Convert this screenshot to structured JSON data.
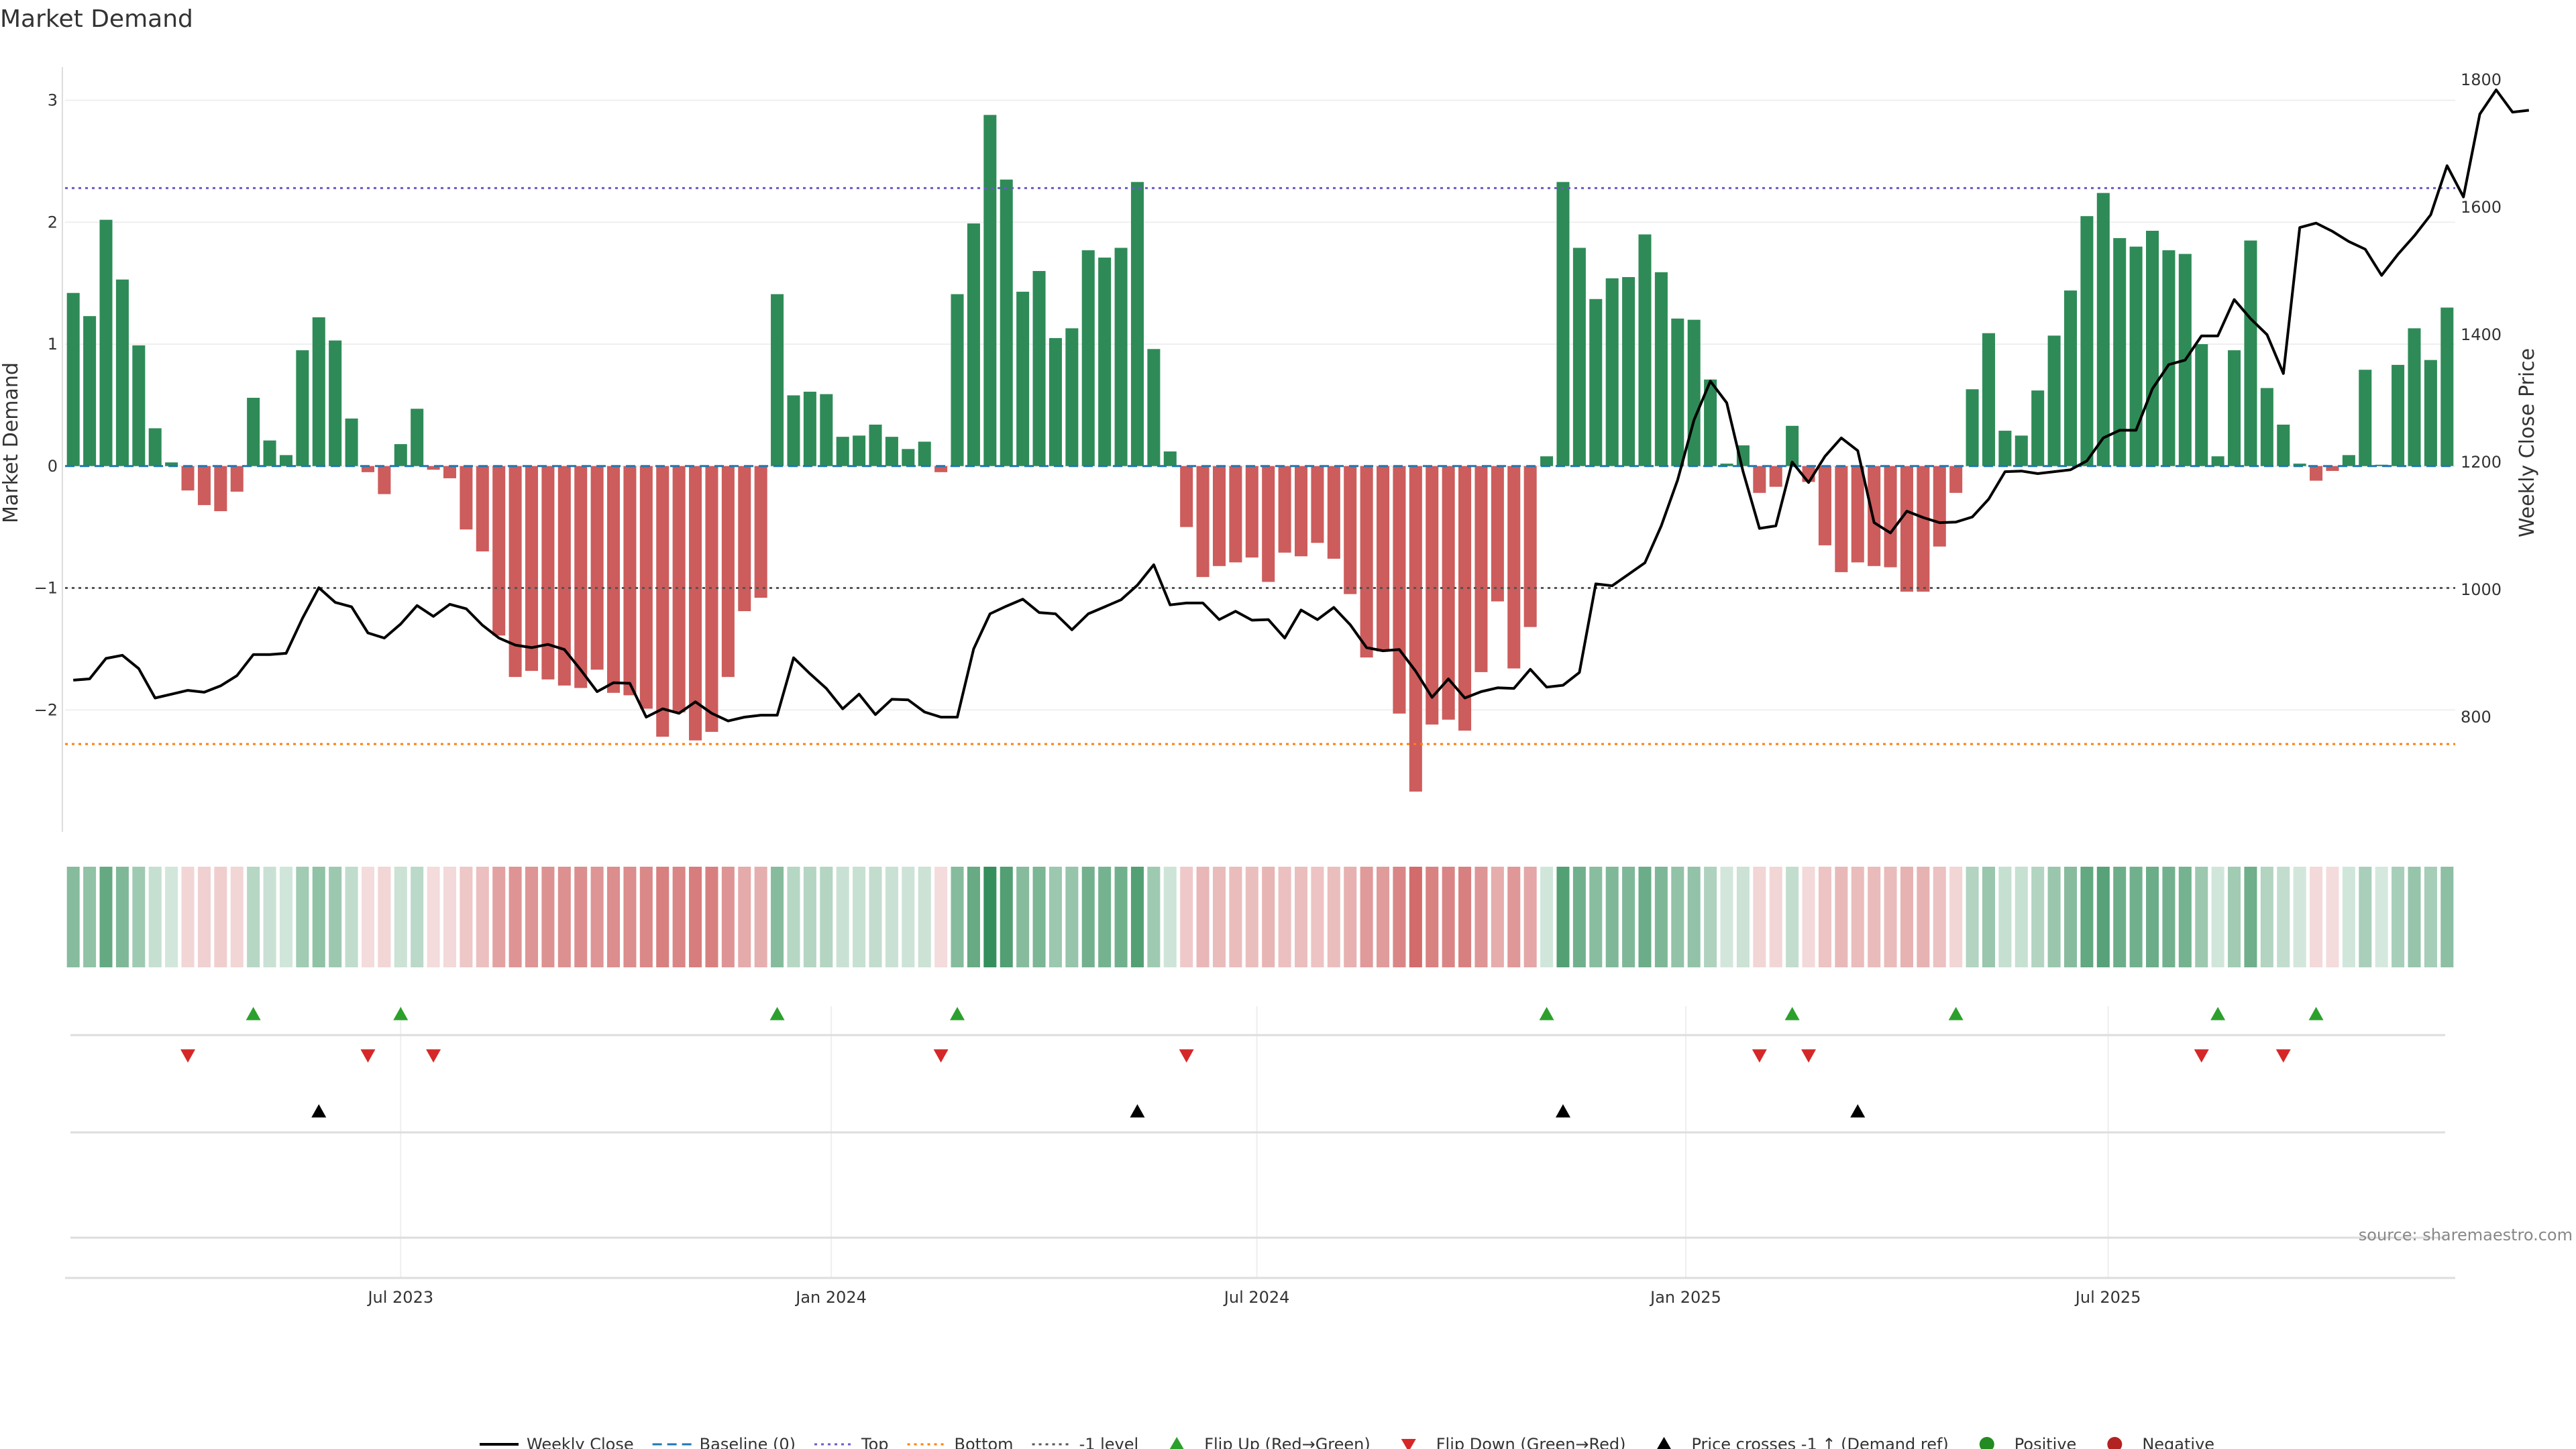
{
  "colors": {
    "pos_bar": "#2e8b57",
    "neg_bar": "#cd5c5c",
    "price_line": "#000000",
    "baseline": "#1f77b4",
    "top": "#6a5acd",
    "bottom": "#ff7f0e",
    "minus1": "#555555",
    "flip_up": "#2ca02c",
    "flip_down": "#d62728",
    "cross": "#000000",
    "positive": "#228b22",
    "negative": "#b22222"
  },
  "chart_data": {
    "type": "bar+line",
    "title": "Market Demand",
    "ylabel_left": "Market Demand",
    "ylabel_right": "Weekly Close Price",
    "ylim_left": [
      -3,
      3.3
    ],
    "ylim_right": [
      620,
      1825
    ],
    "yticks_left": [
      3,
      2,
      1,
      0,
      -1,
      -2
    ],
    "yticks_left_labels": [
      "3",
      "2",
      "1",
      "0",
      "−1",
      "−2"
    ],
    "yticks_right": [
      1800,
      1600,
      1400,
      1200,
      1000,
      800
    ],
    "reference_levels": {
      "top": 2.28,
      "bottom": -2.28,
      "minus1": -1,
      "baseline": 0
    },
    "x_tick_labels": [
      "Jul 2023",
      "Jan 2024",
      "Jul 2024",
      "Jan 2025",
      "Jul 2025"
    ],
    "x_tick_weeks": [
      20.5,
      46.8,
      72.8,
      99.0,
      124.8
    ],
    "demand": [
      1.42,
      1.23,
      2.02,
      1.53,
      0.99,
      0.31,
      0.03,
      -0.2,
      -0.32,
      -0.37,
      -0.21,
      0.56,
      0.21,
      0.09,
      0.95,
      1.22,
      1.03,
      0.39,
      -0.05,
      -0.23,
      0.18,
      0.47,
      -0.03,
      -0.1,
      -0.52,
      -0.7,
      -1.39,
      -1.73,
      -1.68,
      -1.75,
      -1.8,
      -1.82,
      -1.67,
      -1.86,
      -1.88,
      -1.99,
      -2.22,
      -2.02,
      -2.25,
      -2.18,
      -1.73,
      -1.19,
      -1.08,
      1.41,
      0.58,
      0.61,
      0.59,
      0.24,
      0.25,
      0.34,
      0.24,
      0.14,
      0.2,
      -0.05,
      1.41,
      1.99,
      2.88,
      2.35,
      1.43,
      1.6,
      1.05,
      1.13,
      1.77,
      1.71,
      1.79,
      2.33,
      0.96,
      0.12,
      -0.5,
      -0.91,
      -0.82,
      -0.79,
      -0.75,
      -0.95,
      -0.71,
      -0.74,
      -0.63,
      -0.76,
      -1.05,
      -1.57,
      -1.52,
      -2.03,
      -2.67,
      -2.12,
      -2.08,
      -2.17,
      -1.69,
      -1.11,
      -1.66,
      -1.32,
      0.08,
      2.33,
      1.79,
      1.37,
      1.54,
      1.55,
      1.9,
      1.59,
      1.21,
      1.2,
      0.71,
      0.02,
      0.17,
      -0.22,
      -0.17,
      0.33,
      -0.13,
      -0.65,
      -0.87,
      -0.79,
      -0.82,
      -0.83,
      -1.03,
      -1.03,
      -0.66,
      -0.22,
      0.63,
      1.09,
      0.29,
      0.25,
      0.62,
      1.07,
      1.44,
      2.05,
      2.24,
      1.87,
      1.8,
      1.93,
      1.77,
      1.74,
      1.0,
      0.08,
      0.95,
      1.85,
      0.64,
      0.34,
      0.02,
      -0.12,
      -0.04,
      0.09,
      0.79,
      0.01,
      0.83,
      1.13,
      0.87,
      1.3
    ],
    "price": [
      858,
      860,
      892,
      897,
      876,
      830,
      836,
      842,
      839,
      849,
      865,
      898,
      898,
      900,
      955,
      1003,
      980,
      973,
      932,
      924,
      946,
      975,
      958,
      977,
      970,
      944,
      924,
      913,
      909,
      914,
      906,
      874,
      840,
      854,
      853,
      800,
      813,
      806,
      824,
      806,
      794,
      800,
      803,
      803,
      893,
      868,
      845,
      813,
      836,
      804,
      828,
      827,
      808,
      800,
      800,
      907,
      962,
      974,
      985,
      964,
      962,
      937,
      962,
      973,
      984,
      1007,
      1039,
      976,
      979,
      979,
      953,
      966,
      952,
      953,
      924,
      968,
      953,
      972,
      945,
      909,
      904,
      906,
      872,
      831,
      860,
      830,
      840,
      846,
      845,
      875,
      847,
      850,
      870,
      1009,
      1006,
      1024,
      1042,
      1100,
      1172,
      1266,
      1327,
      1293,
      1185,
      1096,
      1100,
      1200,
      1168,
      1209,
      1238,
      1218,
      1105,
      1089,
      1123,
      1113,
      1105,
      1106,
      1114,
      1142,
      1185,
      1186,
      1182,
      1185,
      1188,
      1202,
      1238,
      1250,
      1250,
      1315,
      1353,
      1360,
      1398,
      1398,
      1455,
      1425,
      1400,
      1339,
      1568,
      1575,
      1562,
      1546,
      1534,
      1493,
      1526,
      1555,
      1588,
      1665,
      1616,
      1746,
      1784,
      1749,
      1752
    ],
    "flip_up_weeks": [
      11,
      20,
      43,
      54,
      90,
      105,
      115,
      131,
      137
    ],
    "flip_down_weeks": [
      7,
      18,
      22,
      53,
      68,
      103,
      106,
      130,
      135
    ],
    "cross_weeks": [
      15,
      65,
      91,
      109
    ],
    "legend": [
      "Weekly Close",
      "Baseline (0)",
      "Top",
      "Bottom",
      "-1 level",
      "Flip Up (Red→Green)",
      "Flip Down (Green→Red)",
      "Price crosses -1 ↑ (Demand ref)",
      "Positive",
      "Negative"
    ]
  },
  "source_text": "source: sharemaestro.com"
}
